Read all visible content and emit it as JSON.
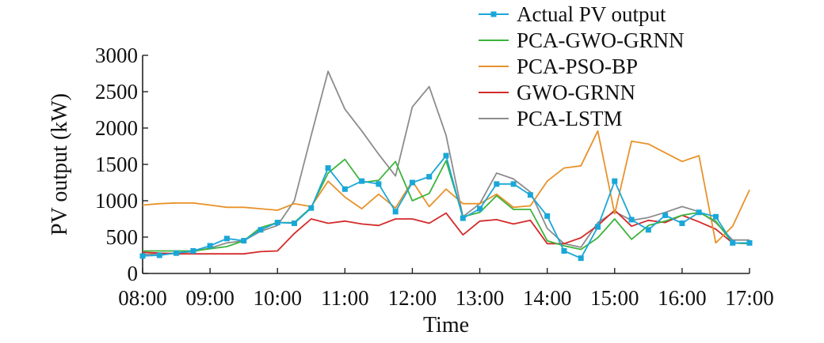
{
  "chart_data": {
    "type": "line",
    "title": "",
    "xlabel": "Time",
    "ylabel": "PV output (kW)",
    "xlim": [
      0,
      36
    ],
    "ylim": [
      0,
      3000
    ],
    "x_tick_labels": [
      "08:00",
      "09:00",
      "10:00",
      "11:00",
      "12:00",
      "13:00",
      "14:00",
      "15:00",
      "16:00",
      "17:00"
    ],
    "y_tick_labels": [
      "0",
      "500",
      "1000",
      "1500",
      "2000",
      "2500",
      "3000"
    ],
    "y_ticks": [
      0,
      500,
      1000,
      1500,
      2000,
      2500,
      3000
    ],
    "grid": false,
    "legend_position": "top-right",
    "x_note": "x values are 15-minute intervals from 08:00 (index 0) to 17:00 (index 36)",
    "series": [
      {
        "name": "Actual PV output",
        "color": "#1aa7d8",
        "marker": "square",
        "values": [
          240,
          250,
          280,
          310,
          380,
          480,
          450,
          600,
          700,
          690,
          900,
          1450,
          1160,
          1270,
          1230,
          850,
          1250,
          1330,
          1620,
          760,
          890,
          1230,
          1230,
          1080,
          790,
          310,
          210,
          640,
          1270,
          740,
          600,
          800,
          690,
          840,
          780,
          420,
          420
        ]
      },
      {
        "name": "PCA-GWO-GRNN",
        "color": "#3cb43c",
        "marker": "none",
        "values": [
          310,
          310,
          310,
          310,
          340,
          370,
          450,
          630,
          700,
          700,
          910,
          1380,
          1570,
          1250,
          1280,
          1540,
          1000,
          1100,
          1550,
          780,
          840,
          1070,
          880,
          880,
          450,
          380,
          330,
          490,
          750,
          470,
          660,
          720,
          800,
          840,
          720,
          420,
          410
        ]
      },
      {
        "name": "PCA-PSO-BP",
        "color": "#e8922a",
        "marker": "none",
        "values": [
          940,
          960,
          970,
          970,
          940,
          910,
          910,
          890,
          870,
          960,
          920,
          1270,
          1050,
          890,
          1090,
          900,
          1270,
          920,
          1160,
          960,
          960,
          1090,
          910,
          930,
          1270,
          1450,
          1480,
          1960,
          820,
          1820,
          1780,
          1660,
          1540,
          1620,
          420,
          650,
          1150
        ]
      },
      {
        "name": "GWO-GRNN",
        "color": "#d42a2a",
        "marker": "none",
        "values": [
          290,
          280,
          270,
          270,
          270,
          270,
          270,
          300,
          310,
          550,
          750,
          690,
          720,
          680,
          660,
          750,
          750,
          690,
          830,
          530,
          720,
          740,
          680,
          730,
          410,
          410,
          490,
          660,
          870,
          650,
          730,
          700,
          800,
          710,
          610,
          420,
          410
        ]
      },
      {
        "name": "PCA-LSTM",
        "color": "#8c8c8c",
        "marker": "none",
        "values": [
          260,
          270,
          280,
          300,
          350,
          420,
          450,
          580,
          660,
          1000,
          1900,
          2780,
          2260,
          1960,
          1640,
          1340,
          2290,
          2570,
          1900,
          780,
          960,
          1380,
          1300,
          1120,
          620,
          410,
          360,
          700,
          850,
          730,
          770,
          840,
          920,
          850,
          700,
          460,
          460
        ]
      }
    ]
  }
}
